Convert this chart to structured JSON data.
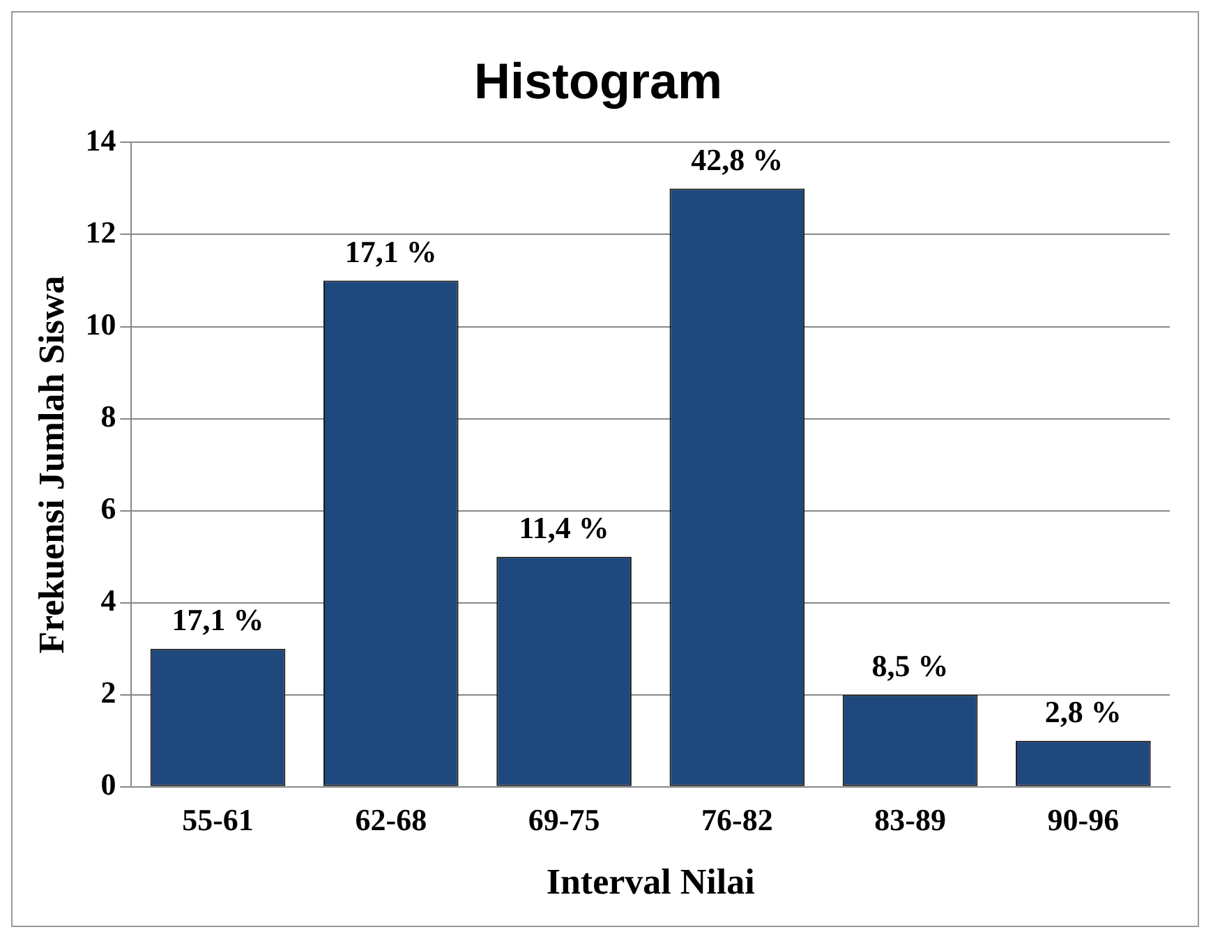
{
  "chart_data": {
    "type": "bar",
    "title": "Histogram",
    "xlabel": "Interval Nilai",
    "ylabel": "Frekuensi Jumlah Siswa",
    "categories": [
      "55-61",
      "62-68",
      "69-75",
      "76-82",
      "83-89",
      "90-96"
    ],
    "values": [
      3,
      11,
      5,
      13,
      2,
      1
    ],
    "annotations": [
      {
        "text": "17,1 %",
        "x": "55-61",
        "y": 3
      },
      {
        "text": "17,1 %",
        "x": "62-68",
        "y": 11
      },
      {
        "text": "11,4 %",
        "x": "69-75",
        "y": 5
      },
      {
        "text": "42,8 %",
        "x": "76-82",
        "y": 13
      },
      {
        "text": "8,5 %",
        "x": "83-89",
        "y": 2
      },
      {
        "text": "2,8 %",
        "x": "90-96",
        "y": 1
      }
    ],
    "color": "#1f497d",
    "ylim": [
      0,
      14
    ],
    "yticks": [
      0,
      2,
      4,
      6,
      8,
      10,
      12,
      14
    ],
    "grid": "y",
    "legend": false
  }
}
